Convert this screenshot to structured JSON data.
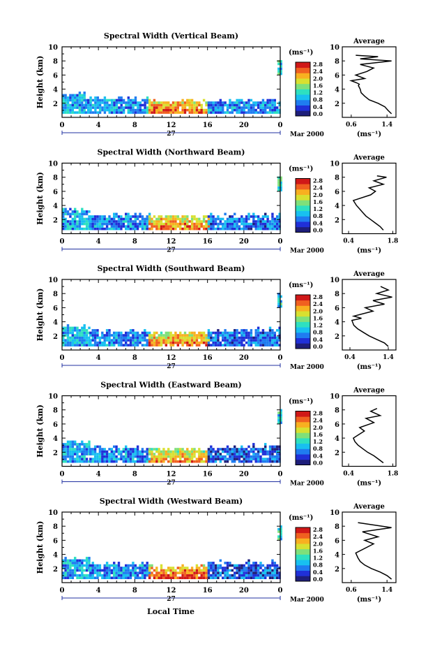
{
  "x_axis_label": "Local Time",
  "colorbar_unit": "(ms⁻¹)",
  "avg_title": "Average",
  "avg_unit": "(ms⁻¹)",
  "height_label": "Height (km)",
  "time_ticks": [
    "0",
    "4",
    "8",
    "12",
    "16",
    "20",
    "0"
  ],
  "day_label": "27",
  "date_label": "Mar 2000",
  "colorbar_ticks": [
    "2.8",
    "2.4",
    "2.0",
    "1.6",
    "1.2",
    "0.8",
    "0.4",
    "0.0"
  ],
  "colors": {
    "scale": [
      "#1e1e7a",
      "#2030d8",
      "#1f7cf0",
      "#18c0f0",
      "#2ee0c0",
      "#7fe07a",
      "#d8e030",
      "#f8b020",
      "#f06020",
      "#d01818"
    ],
    "axis": "#000000",
    "time_bar": "#2030a0"
  },
  "panels": [
    {
      "title": "Spectral Width (Vertical Beam)",
      "avg_ticks": [
        "0.6",
        "1.4"
      ],
      "chart_data": {
        "type": "heatmap",
        "title": "Spectral Width (Vertical Beam)",
        "xlabel": "Local Time",
        "ylabel": "Height (km)",
        "xlim": [
          0,
          24
        ],
        "ylim": [
          0,
          10
        ],
        "clim": [
          0,
          3.0
        ],
        "xticks": [
          0,
          4,
          8,
          12,
          16,
          20,
          24
        ],
        "yticks": [
          2,
          4,
          6,
          8,
          10
        ],
        "date": "27 Mar 2000",
        "regions": [
          {
            "x": [
              0,
              2.5
            ],
            "y": [
              0.5,
              3.5
            ],
            "width_approx": 1.0
          },
          {
            "x": [
              2.5,
              9.5
            ],
            "y": [
              0.5,
              2.8
            ],
            "width_approx": 0.9
          },
          {
            "x": [
              9.5,
              16
            ],
            "y": [
              0.5,
              2.5
            ],
            "width_approx": 1.9
          },
          {
            "x": [
              16,
              24
            ],
            "y": [
              0.5,
              2.6
            ],
            "width_approx": 0.8
          },
          {
            "x": [
              23.7,
              24
            ],
            "y": [
              6.0,
              8.0
            ],
            "width_approx": 1.2
          }
        ]
      },
      "avg_chart": {
        "type": "line",
        "xlim": [
          0.4,
          1.6
        ],
        "ylim": [
          0,
          10
        ],
        "xticks": [
          0.6,
          1.4
        ],
        "yticks": [
          2,
          4,
          6,
          8,
          10
        ],
        "x": [
          1.5,
          1.42,
          1.35,
          1.2,
          1.0,
          0.9,
          0.82,
          0.8,
          0.76,
          0.78,
          0.72,
          0.6,
          0.9,
          0.7,
          0.95,
          1.1,
          0.8,
          1.5,
          0.8,
          1.2,
          0.7
        ],
        "y": [
          0.5,
          1.0,
          1.5,
          2.0,
          2.5,
          3.0,
          3.5,
          4.0,
          4.5,
          4.7,
          4.9,
          5.2,
          5.5,
          6.0,
          6.5,
          7.0,
          7.5,
          8.0,
          8.3,
          8.6,
          8.8
        ]
      }
    },
    {
      "title": "Spectral Width (Northward Beam)",
      "avg_ticks": [
        "0.4",
        "1.8"
      ],
      "chart_data": {
        "type": "heatmap",
        "title": "Spectral Width (Northward Beam)",
        "xlabel": "Local Time",
        "ylabel": "Height (km)",
        "xlim": [
          0,
          24
        ],
        "ylim": [
          0,
          10
        ],
        "clim": [
          0,
          3.0
        ],
        "xticks": [
          0,
          4,
          8,
          12,
          16,
          20,
          24
        ],
        "yticks": [
          2,
          4,
          6,
          8,
          10
        ],
        "date": "27 Mar 2000",
        "regions": [
          {
            "x": [
              0,
              3
            ],
            "y": [
              0.5,
              3.5
            ],
            "width_approx": 1.0
          },
          {
            "x": [
              3,
              9.5
            ],
            "y": [
              0.5,
              2.8
            ],
            "width_approx": 0.8
          },
          {
            "x": [
              9.5,
              16
            ],
            "y": [
              0.5,
              2.6
            ],
            "width_approx": 1.8
          },
          {
            "x": [
              16,
              24
            ],
            "y": [
              0.5,
              2.8
            ],
            "width_approx": 0.7
          },
          {
            "x": [
              23.7,
              24
            ],
            "y": [
              6.0,
              8.0
            ],
            "width_approx": 1.2
          }
        ]
      },
      "avg_chart": {
        "type": "line",
        "xlim": [
          0.2,
          1.9
        ],
        "ylim": [
          0,
          10
        ],
        "xticks": [
          0.4,
          1.8
        ],
        "yticks": [
          2,
          4,
          6,
          8,
          10
        ],
        "x": [
          1.5,
          1.4,
          1.25,
          1.1,
          0.95,
          0.85,
          0.75,
          0.65,
          0.55,
          1.1,
          1.25,
          1.05,
          1.5,
          1.2,
          1.6,
          1.3
        ],
        "y": [
          0.5,
          1.0,
          1.5,
          2.0,
          2.5,
          3.0,
          3.5,
          4.0,
          4.7,
          5.5,
          6.0,
          6.5,
          7.0,
          7.5,
          8.0,
          8.2
        ]
      }
    },
    {
      "title": "Spectral Width (Southward Beam)",
      "avg_ticks": [
        "0.4",
        "1.4"
      ],
      "chart_data": {
        "type": "heatmap",
        "title": "Spectral Width (Southward Beam)",
        "xlabel": "Local Time",
        "ylabel": "Height (km)",
        "xlim": [
          0,
          24
        ],
        "ylim": [
          0,
          10
        ],
        "clim": [
          0,
          3.0
        ],
        "xticks": [
          0,
          4,
          8,
          12,
          16,
          20,
          24
        ],
        "yticks": [
          2,
          4,
          6,
          8,
          10
        ],
        "date": "27 Mar 2000",
        "regions": [
          {
            "x": [
              0,
              3
            ],
            "y": [
              0.5,
              3.5
            ],
            "width_approx": 1.0
          },
          {
            "x": [
              3,
              9.5
            ],
            "y": [
              0.5,
              2.8
            ],
            "width_approx": 0.8
          },
          {
            "x": [
              9.5,
              16
            ],
            "y": [
              0.5,
              2.6
            ],
            "width_approx": 1.8
          },
          {
            "x": [
              16,
              24
            ],
            "y": [
              0.5,
              3.0
            ],
            "width_approx": 0.7
          },
          {
            "x": [
              23.7,
              24
            ],
            "y": [
              6.0,
              8.0
            ],
            "width_approx": 1.2
          }
        ]
      },
      "avg_chart": {
        "type": "line",
        "xlim": [
          0.2,
          1.6
        ],
        "ylim": [
          0,
          10
        ],
        "xticks": [
          0.4,
          1.4
        ],
        "yticks": [
          2,
          4,
          6,
          8,
          10
        ],
        "x": [
          1.4,
          1.3,
          1.1,
          0.9,
          0.75,
          0.6,
          0.5,
          0.45,
          0.7,
          0.5,
          1.0,
          0.8,
          1.3,
          1.0,
          1.5,
          1.1,
          1.4,
          1.2
        ],
        "y": [
          0.5,
          1.0,
          1.5,
          2.0,
          2.5,
          3.0,
          3.5,
          4.2,
          4.5,
          4.8,
          5.5,
          6.0,
          6.5,
          7.0,
          7.5,
          8.0,
          8.5,
          9.0
        ]
      }
    },
    {
      "title": "Spectral Width (Eastward Beam)",
      "avg_ticks": [
        "0.4",
        "1.8"
      ],
      "chart_data": {
        "type": "heatmap",
        "title": "Spectral Width (Eastward Beam)",
        "xlabel": "Local Time",
        "ylabel": "Height (km)",
        "xlim": [
          0,
          24
        ],
        "ylim": [
          0,
          10
        ],
        "clim": [
          0,
          3.0
        ],
        "xticks": [
          0,
          4,
          8,
          12,
          16,
          20,
          24
        ],
        "yticks": [
          2,
          4,
          6,
          8,
          10
        ],
        "date": "27 Mar 2000",
        "regions": [
          {
            "x": [
              0,
              3
            ],
            "y": [
              0.5,
              3.5
            ],
            "width_approx": 1.0
          },
          {
            "x": [
              3,
              9.5
            ],
            "y": [
              0.5,
              2.8
            ],
            "width_approx": 0.8
          },
          {
            "x": [
              9.5,
              16
            ],
            "y": [
              0.5,
              2.6
            ],
            "width_approx": 1.7
          },
          {
            "x": [
              16,
              24
            ],
            "y": [
              0.5,
              3.0
            ],
            "width_approx": 0.6
          },
          {
            "x": [
              23.7,
              24
            ],
            "y": [
              6.0,
              8.0
            ],
            "width_approx": 1.2
          }
        ]
      },
      "avg_chart": {
        "type": "line",
        "xlim": [
          0.2,
          1.9
        ],
        "ylim": [
          0,
          10
        ],
        "xticks": [
          0.4,
          1.8
        ],
        "yticks": [
          2,
          4,
          6,
          8,
          10
        ],
        "x": [
          1.5,
          1.35,
          1.2,
          1.0,
          0.85,
          0.7,
          0.6,
          0.55,
          0.9,
          0.75,
          1.2,
          0.95,
          1.4,
          1.1,
          1.3
        ],
        "y": [
          0.5,
          1.0,
          1.5,
          2.0,
          2.5,
          3.0,
          3.5,
          4.0,
          5.0,
          5.5,
          6.2,
          6.8,
          7.2,
          7.8,
          8.2
        ]
      }
    },
    {
      "title": "Spectral Width (Westward Beam)",
      "avg_ticks": [
        "0.6",
        "1.4"
      ],
      "chart_data": {
        "type": "heatmap",
        "title": "Spectral Width (Westward Beam)",
        "xlabel": "Local Time",
        "ylabel": "Height (km)",
        "xlim": [
          0,
          24
        ],
        "ylim": [
          0,
          10
        ],
        "clim": [
          0,
          3.0
        ],
        "xticks": [
          0,
          4,
          8,
          12,
          16,
          20,
          24
        ],
        "yticks": [
          2,
          4,
          6,
          8,
          10
        ],
        "date": "27 Mar 2000",
        "regions": [
          {
            "x": [
              0,
              3
            ],
            "y": [
              0.5,
              3.5
            ],
            "width_approx": 1.0
          },
          {
            "x": [
              3,
              9.5
            ],
            "y": [
              0.5,
              2.8
            ],
            "width_approx": 0.8
          },
          {
            "x": [
              9.5,
              16
            ],
            "y": [
              0.5,
              2.4
            ],
            "width_approx": 2.0
          },
          {
            "x": [
              16,
              24
            ],
            "y": [
              0.5,
              3.0
            ],
            "width_approx": 0.6
          },
          {
            "x": [
              23.7,
              24
            ],
            "y": [
              6.0,
              8.0
            ],
            "width_approx": 1.2
          }
        ]
      },
      "avg_chart": {
        "type": "line",
        "xlim": [
          0.4,
          1.6
        ],
        "ylim": [
          0,
          10
        ],
        "xticks": [
          0.6,
          1.4
        ],
        "yticks": [
          2,
          4,
          6,
          8,
          10
        ],
        "x": [
          1.5,
          1.4,
          1.25,
          1.05,
          0.9,
          0.8,
          0.75,
          0.7,
          1.1,
          0.9,
          1.2,
          0.85,
          1.5,
          0.75
        ],
        "y": [
          0.5,
          1.0,
          1.5,
          2.0,
          2.5,
          3.0,
          3.5,
          4.2,
          5.5,
          6.0,
          6.5,
          7.2,
          7.8,
          8.5
        ]
      }
    }
  ]
}
